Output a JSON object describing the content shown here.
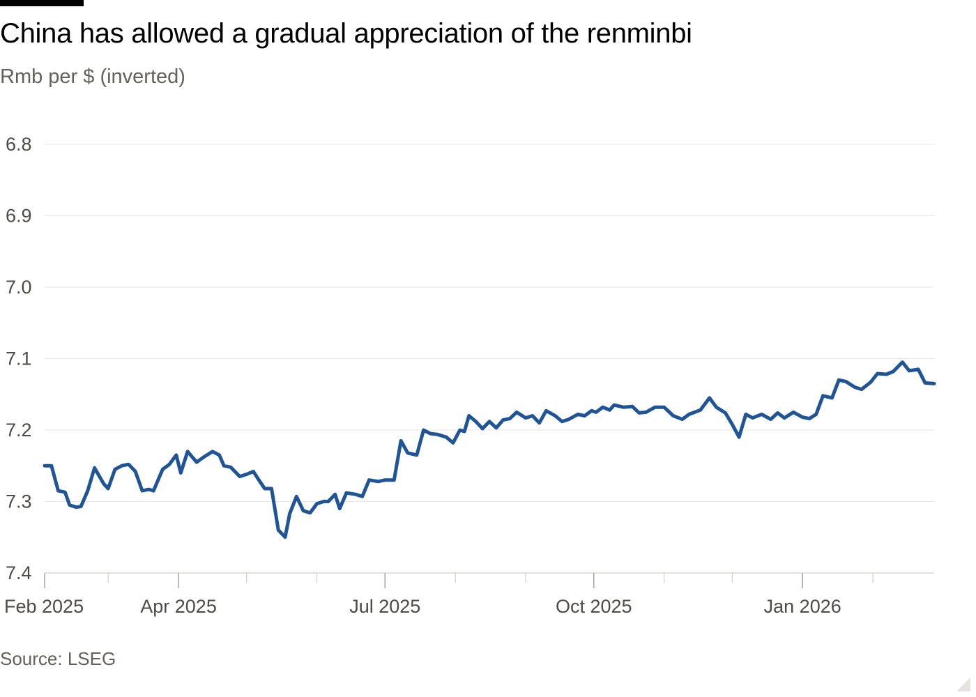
{
  "header": {
    "title": "China has allowed a gradual appreciation of the renminbi",
    "subtitle": "Rmb per $ (inverted)"
  },
  "footer": {
    "source": "Source: LSEG"
  },
  "colors": {
    "line": "#1f5597",
    "grid": "#ebe7e4",
    "axis": "#c9c4bf",
    "text": "#4e4a47"
  },
  "chart_data": {
    "type": "line",
    "title": "China has allowed a gradual appreciation of the renminbi",
    "ylabel": "Rmb per $ (inverted)",
    "y_inverted": true,
    "ylim": [
      6.8,
      7.4
    ],
    "yticks": [
      "6.8",
      "6.9",
      "7.0",
      "7.1",
      "7.2",
      "7.3",
      "7.4"
    ],
    "xticks": [
      "Feb 2025",
      "Apr 2025",
      "Jul 2025",
      "Oct 2025",
      "Jan 2026"
    ],
    "xlim": [
      "2025-02-01",
      "2026-02-28"
    ],
    "grid": true,
    "legend": "none",
    "series": [
      {
        "points": [
          [
            "2025-02-01",
            7.25
          ],
          [
            "2025-02-04",
            7.25
          ],
          [
            "2025-02-07",
            7.285
          ],
          [
            "2025-02-10",
            7.287
          ],
          [
            "2025-02-12",
            7.305
          ],
          [
            "2025-02-15",
            7.308
          ],
          [
            "2025-02-17",
            7.307
          ],
          [
            "2025-02-20",
            7.285
          ],
          [
            "2025-02-23",
            7.253
          ],
          [
            "2025-02-27",
            7.275
          ],
          [
            "2025-03-01",
            7.282
          ],
          [
            "2025-03-04",
            7.255
          ],
          [
            "2025-03-07",
            7.25
          ],
          [
            "2025-03-10",
            7.248
          ],
          [
            "2025-03-13",
            7.258
          ],
          [
            "2025-03-16",
            7.285
          ],
          [
            "2025-03-19",
            7.283
          ],
          [
            "2025-03-21",
            7.285
          ],
          [
            "2025-03-25",
            7.255
          ],
          [
            "2025-03-28",
            7.248
          ],
          [
            "2025-03-31",
            7.235
          ],
          [
            "2025-04-02",
            7.26
          ],
          [
            "2025-04-05",
            7.23
          ],
          [
            "2025-04-09",
            7.245
          ],
          [
            "2025-04-12",
            7.238
          ],
          [
            "2025-04-16",
            7.23
          ],
          [
            "2025-04-19",
            7.235
          ],
          [
            "2025-04-21",
            7.25
          ],
          [
            "2025-04-24",
            7.252
          ],
          [
            "2025-04-28",
            7.265
          ],
          [
            "2025-05-01",
            7.262
          ],
          [
            "2025-05-04",
            7.258
          ],
          [
            "2025-05-06",
            7.268
          ],
          [
            "2025-05-09",
            7.282
          ],
          [
            "2025-05-12",
            7.282
          ],
          [
            "2025-05-15",
            7.34
          ],
          [
            "2025-05-18",
            7.35
          ],
          [
            "2025-05-20",
            7.317
          ],
          [
            "2025-05-23",
            7.293
          ],
          [
            "2025-05-26",
            7.313
          ],
          [
            "2025-05-29",
            7.316
          ],
          [
            "2025-06-01",
            7.303
          ],
          [
            "2025-06-04",
            7.3
          ],
          [
            "2025-06-06",
            7.3
          ],
          [
            "2025-06-09",
            7.29
          ],
          [
            "2025-06-11",
            7.31
          ],
          [
            "2025-06-14",
            7.288
          ],
          [
            "2025-06-18",
            7.29
          ],
          [
            "2025-06-21",
            7.293
          ],
          [
            "2025-06-24",
            7.27
          ],
          [
            "2025-06-28",
            7.272
          ],
          [
            "2025-07-01",
            7.27
          ],
          [
            "2025-07-05",
            7.27
          ],
          [
            "2025-07-08",
            7.215
          ],
          [
            "2025-07-11",
            7.232
          ],
          [
            "2025-07-15",
            7.235
          ],
          [
            "2025-07-18",
            7.2
          ],
          [
            "2025-07-21",
            7.205
          ],
          [
            "2025-07-24",
            7.206
          ],
          [
            "2025-07-28",
            7.21
          ],
          [
            "2025-07-31",
            7.218
          ],
          [
            "2025-08-03",
            7.2
          ],
          [
            "2025-08-05",
            7.202
          ],
          [
            "2025-08-07",
            7.18
          ],
          [
            "2025-08-10",
            7.188
          ],
          [
            "2025-08-13",
            7.198
          ],
          [
            "2025-08-16",
            7.188
          ],
          [
            "2025-08-19",
            7.197
          ],
          [
            "2025-08-22",
            7.186
          ],
          [
            "2025-08-25",
            7.184
          ],
          [
            "2025-08-28",
            7.175
          ],
          [
            "2025-09-01",
            7.183
          ],
          [
            "2025-09-04",
            7.18
          ],
          [
            "2025-09-07",
            7.19
          ],
          [
            "2025-09-10",
            7.173
          ],
          [
            "2025-09-14",
            7.18
          ],
          [
            "2025-09-17",
            7.188
          ],
          [
            "2025-09-20",
            7.185
          ],
          [
            "2025-09-24",
            7.178
          ],
          [
            "2025-09-27",
            7.18
          ],
          [
            "2025-09-30",
            7.173
          ],
          [
            "2025-10-02",
            7.175
          ],
          [
            "2025-10-05",
            7.168
          ],
          [
            "2025-10-08",
            7.172
          ],
          [
            "2025-10-10",
            7.165
          ],
          [
            "2025-10-14",
            7.168
          ],
          [
            "2025-10-18",
            7.167
          ],
          [
            "2025-10-21",
            7.176
          ],
          [
            "2025-10-24",
            7.175
          ],
          [
            "2025-10-28",
            7.168
          ],
          [
            "2025-11-01",
            7.168
          ],
          [
            "2025-11-05",
            7.18
          ],
          [
            "2025-11-09",
            7.185
          ],
          [
            "2025-11-12",
            7.178
          ],
          [
            "2025-11-17",
            7.172
          ],
          [
            "2025-11-21",
            7.155
          ],
          [
            "2025-11-24",
            7.168
          ],
          [
            "2025-11-28",
            7.176
          ],
          [
            "2025-12-01",
            7.192
          ],
          [
            "2025-12-04",
            7.21
          ],
          [
            "2025-12-07",
            7.178
          ],
          [
            "2025-12-10",
            7.183
          ],
          [
            "2025-12-14",
            7.178
          ],
          [
            "2025-12-18",
            7.185
          ],
          [
            "2025-12-21",
            7.176
          ],
          [
            "2025-12-24",
            7.183
          ],
          [
            "2025-12-28",
            7.175
          ],
          [
            "2026-01-01",
            7.182
          ],
          [
            "2026-01-04",
            7.184
          ],
          [
            "2026-01-07",
            7.178
          ],
          [
            "2026-01-10",
            7.152
          ],
          [
            "2026-01-14",
            7.155
          ],
          [
            "2026-01-17",
            7.13
          ],
          [
            "2026-01-20",
            7.132
          ],
          [
            "2026-01-24",
            7.14
          ],
          [
            "2026-01-27",
            7.143
          ],
          [
            "2026-01-31",
            7.133
          ],
          [
            "2026-02-03",
            7.121
          ],
          [
            "2026-02-07",
            7.122
          ],
          [
            "2026-02-10",
            7.118
          ],
          [
            "2026-02-14",
            7.105
          ],
          [
            "2026-02-17",
            7.117
          ],
          [
            "2026-02-21",
            7.115
          ],
          [
            "2026-02-24",
            7.134
          ],
          [
            "2026-02-28",
            7.135
          ]
        ]
      }
    ]
  }
}
